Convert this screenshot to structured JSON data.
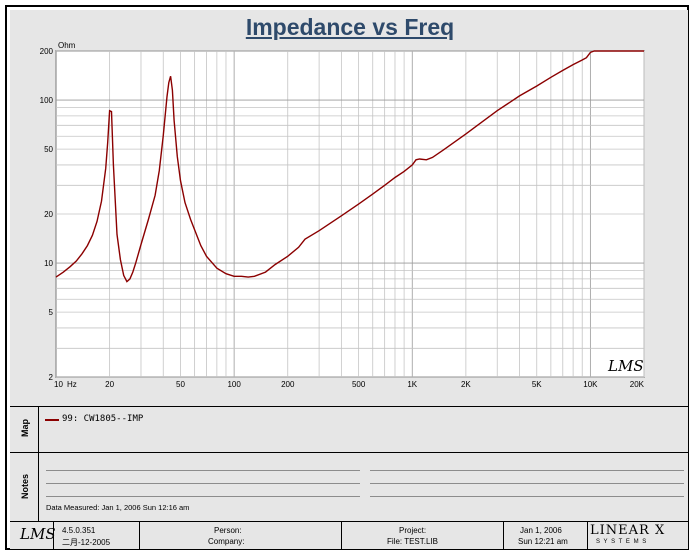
{
  "chart_data": {
    "type": "line",
    "title": "Impedance vs Freq",
    "ylabel": "Ohm",
    "xunit": "Hz",
    "xscale": "log",
    "yscale": "log",
    "xlim": [
      10,
      20000
    ],
    "ylim": [
      2,
      200
    ],
    "xticks": [
      {
        "value": 10,
        "label": "10"
      },
      {
        "value": 20,
        "label": "20"
      },
      {
        "value": 50,
        "label": "50"
      },
      {
        "value": 100,
        "label": "100"
      },
      {
        "value": 200,
        "label": "200"
      },
      {
        "value": 500,
        "label": "500"
      },
      {
        "value": 1000,
        "label": "1K"
      },
      {
        "value": 2000,
        "label": "2K"
      },
      {
        "value": 5000,
        "label": "5K"
      },
      {
        "value": 10000,
        "label": "10K"
      },
      {
        "value": 20000,
        "label": "20K"
      }
    ],
    "yticks": [
      {
        "value": 200,
        "label": "200"
      },
      {
        "value": 100,
        "label": "100"
      },
      {
        "value": 50,
        "label": "50"
      },
      {
        "value": 20,
        "label": "20"
      },
      {
        "value": 10,
        "label": "10"
      },
      {
        "value": 5,
        "label": "5"
      },
      {
        "value": 2,
        "label": "2"
      }
    ],
    "grid": true,
    "series": [
      {
        "name": "99: CW1805--IMP",
        "color": "#8b0000",
        "x": [
          10,
          11,
          12,
          13,
          14,
          15,
          16,
          17,
          18,
          19,
          19.5,
          20,
          20.5,
          21,
          22,
          23,
          24,
          25,
          26,
          27,
          28,
          30,
          33,
          36,
          38,
          40,
          42,
          43,
          44,
          45,
          46,
          48,
          50,
          53,
          57,
          60,
          65,
          70,
          80,
          90,
          100,
          110,
          120,
          130,
          150,
          170,
          200,
          230,
          250,
          300,
          400,
          500,
          600,
          700,
          800,
          900,
          1000,
          1050,
          1100,
          1200,
          1300,
          1500,
          2000,
          3000,
          4000,
          5000,
          6000,
          7000,
          8000,
          9000,
          9500,
          10000,
          10500,
          12000,
          15000,
          20000
        ],
        "y": [
          8.2,
          8.8,
          9.5,
          10.3,
          11.4,
          12.8,
          14.8,
          18,
          24,
          38,
          55,
          86,
          85,
          40,
          15,
          10.5,
          8.4,
          7.7,
          8,
          8.8,
          10,
          13,
          18.5,
          26,
          37,
          60,
          105,
          128,
          140,
          115,
          75,
          45,
          32,
          23.5,
          18.5,
          16,
          12.8,
          11,
          9.3,
          8.6,
          8.3,
          8.3,
          8.2,
          8.3,
          8.8,
          9.8,
          11,
          12.5,
          14,
          15.8,
          19.5,
          23,
          26.5,
          30,
          33.5,
          36.5,
          40,
          43,
          43.5,
          43,
          44.5,
          49.5,
          62,
          86,
          106,
          122,
          138,
          152,
          165,
          176,
          182,
          196,
          200,
          200,
          200,
          200
        ]
      }
    ]
  },
  "map_panel": {
    "label": "Map",
    "legend_items": [
      {
        "text": "99: CW1805--IMP",
        "color": "#8b0000"
      }
    ]
  },
  "notes_panel": {
    "label": "Notes",
    "data_measured": "Data Measured: Jan  1, 2006  Sun 12:16 am"
  },
  "footer": {
    "logo": "LMS",
    "version": "4.5.0.351",
    "version_date": "二月-12-2005",
    "person_label": "Person:",
    "company_label": "Company:",
    "project_label": "Project:",
    "file_label": "File: TEST.LIB",
    "date": "Jan  1, 2006",
    "time": "Sun 12:21 am",
    "brand": "LINEAR X",
    "brand_sub": "S Y S T E M S"
  },
  "chart_logo": "LMS",
  "colors": {
    "panel": "#e6e6e6",
    "title": "#2e4a6b",
    "curve": "#8b0000"
  }
}
